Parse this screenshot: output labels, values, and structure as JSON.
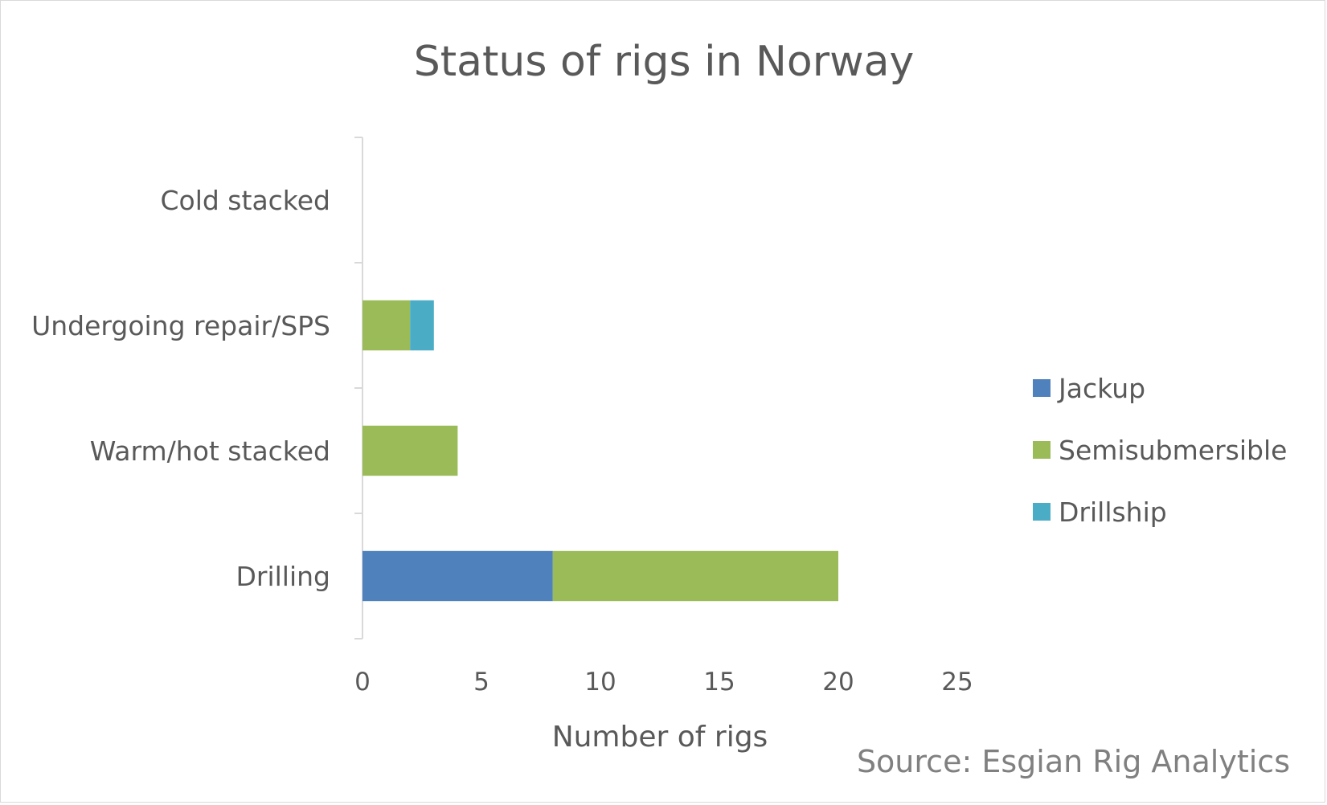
{
  "chart_data": {
    "type": "bar",
    "orientation": "horizontal",
    "stacked": true,
    "title": "Status of rigs in Norway",
    "xlabel": "Number of rigs",
    "ylabel": "",
    "categories": [
      "Cold stacked",
      "Undergoing repair/SPS",
      "Warm/hot stacked",
      "Drilling"
    ],
    "series": [
      {
        "name": "Jackup",
        "color": "#4f81bd",
        "values": [
          0,
          0,
          0,
          8
        ]
      },
      {
        "name": "Semisubmersible",
        "color": "#9bbb59",
        "values": [
          0,
          2,
          4,
          12
        ]
      },
      {
        "name": "Drillship",
        "color": "#4bacc6",
        "values": [
          0,
          1,
          0,
          0
        ]
      }
    ],
    "xlim": [
      0,
      25
    ],
    "xticks": [
      "0",
      "5",
      "10",
      "15",
      "20",
      "25"
    ],
    "grid": false,
    "legend_position": "right",
    "source": "Source: Esgian Rig Analytics"
  }
}
